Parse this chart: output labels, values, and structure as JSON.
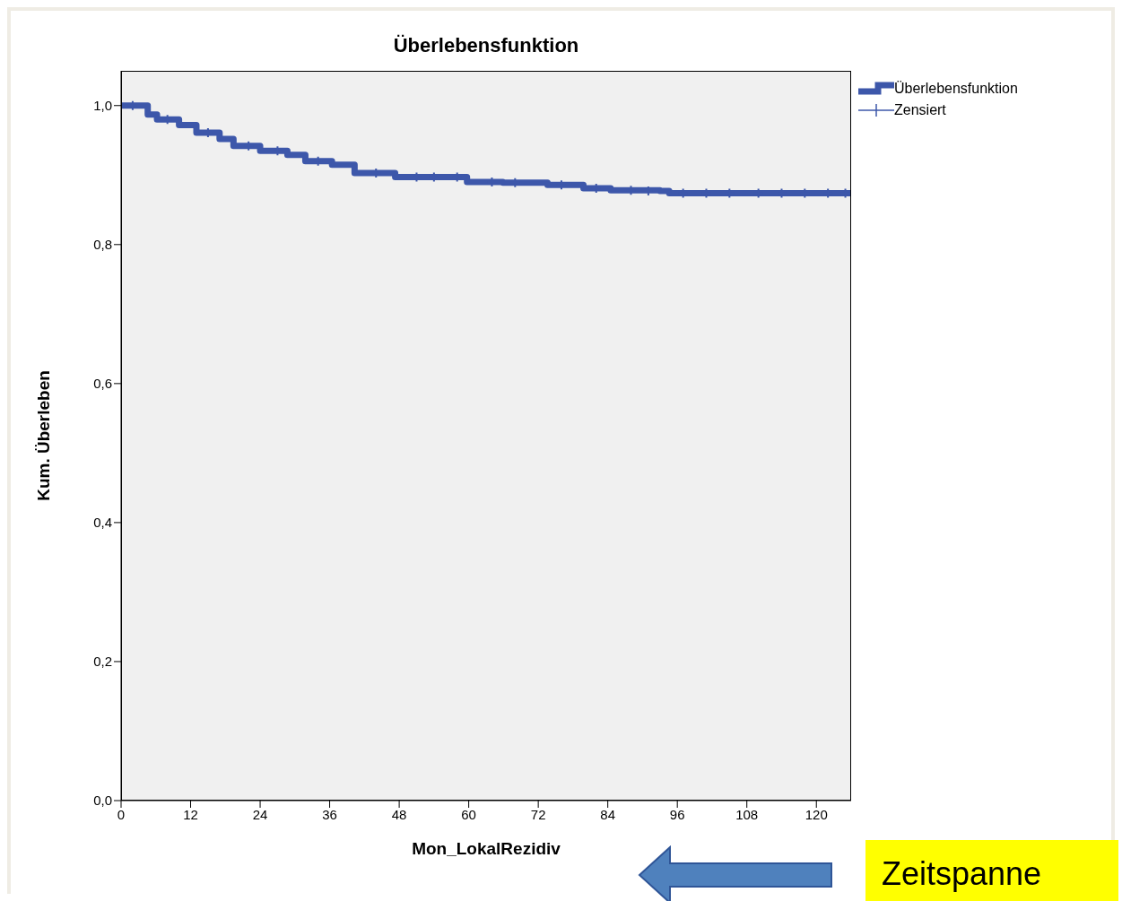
{
  "chart_data": {
    "type": "step",
    "title": "Überlebensfunktion",
    "xlabel": "Mon_LokalRezidiv",
    "ylabel": "Kum. Überleben",
    "xlim": [
      0,
      126
    ],
    "ylim": [
      0,
      1.05
    ],
    "xticks": [
      0,
      12,
      24,
      36,
      48,
      60,
      72,
      84,
      96,
      108,
      120
    ],
    "yticks": [
      {
        "value": 0,
        "label": "0,0"
      },
      {
        "value": 0.2,
        "label": "0,2"
      },
      {
        "value": 0.4,
        "label": "0,4"
      },
      {
        "value": 0.6,
        "label": "0,6"
      },
      {
        "value": 0.8,
        "label": "0,8"
      },
      {
        "value": 1,
        "label": "1,0"
      }
    ],
    "grid": false,
    "legend": "top right",
    "line_style": "solid",
    "series": [
      {
        "name": "Überlebensfunktion",
        "type": "step",
        "color": "#3d57aa",
        "x": [
          0,
          3,
          4.6,
          6.2,
          10,
          13,
          17,
          19.4,
          24,
          28.7,
          31.8,
          36.4,
          40.3,
          47.3,
          56.6,
          59.7,
          65.9,
          73.6,
          79.8,
          84.5,
          93,
          94.6,
          126
        ],
        "values": [
          1,
          1,
          0.987,
          0.98,
          0.972,
          0.961,
          0.952,
          0.942,
          0.935,
          0.929,
          0.92,
          0.915,
          0.903,
          0.897,
          0.897,
          0.89,
          0.889,
          0.886,
          0.881,
          0.878,
          0.877,
          0.874,
          0.874
        ]
      },
      {
        "name": "Zensiert",
        "type": "scatter",
        "marker": "cross",
        "color": "#3d57aa",
        "x": [
          2,
          8,
          15,
          22,
          27,
          34,
          44,
          51,
          54,
          58,
          64,
          68,
          76,
          82,
          88,
          91,
          97,
          101,
          105,
          110,
          114,
          118,
          122,
          125
        ],
        "values": [
          1,
          0.98,
          0.961,
          0.942,
          0.935,
          0.92,
          0.903,
          0.897,
          0.897,
          0.897,
          0.89,
          0.889,
          0.886,
          0.881,
          0.878,
          0.877,
          0.874,
          0.874,
          0.874,
          0.874,
          0.874,
          0.874,
          0.874,
          0.874
        ]
      }
    ],
    "annotations": [
      "Zeitspanne"
    ]
  }
}
